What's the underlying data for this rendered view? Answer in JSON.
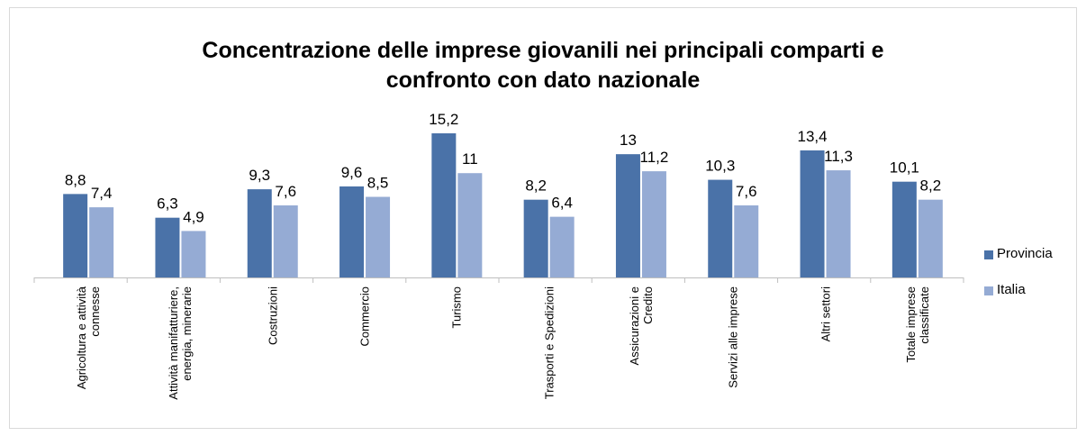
{
  "chart_data": {
    "type": "bar",
    "title": "Concentrazione delle imprese giovanili nei principali comparti e confronto con dato nazionale",
    "categories": [
      "Agricoltura e attività connesse",
      "Attività manifatturiere, energia, minerarie",
      "Costruzioni",
      "Commercio",
      "Turismo",
      "Trasporti e Spedizioni",
      "Assicurazioni e Credito",
      "Servizi alle imprese",
      "Altri settori",
      "Totale imprese classificate"
    ],
    "series": [
      {
        "name": "Provincia",
        "color": "#4a72a8",
        "values": [
          8.8,
          6.3,
          9.3,
          9.6,
          15.2,
          8.2,
          13,
          10.3,
          13.4,
          10.1
        ],
        "value_labels": [
          "8,8",
          "6,3",
          "9,3",
          "9,6",
          "15,2",
          "8,2",
          "13",
          "10,3",
          "13,4",
          "10,1"
        ]
      },
      {
        "name": "Italia",
        "color": "#95abd4",
        "values": [
          7.4,
          4.9,
          7.6,
          8.5,
          11,
          6.4,
          11.2,
          7.6,
          11.3,
          8.2
        ],
        "value_labels": [
          "7,4",
          "4,9",
          "7,6",
          "8,5",
          "11",
          "6,4",
          "11,2",
          "7,6",
          "11,3",
          "8,2"
        ]
      }
    ],
    "legend": "right"
  }
}
